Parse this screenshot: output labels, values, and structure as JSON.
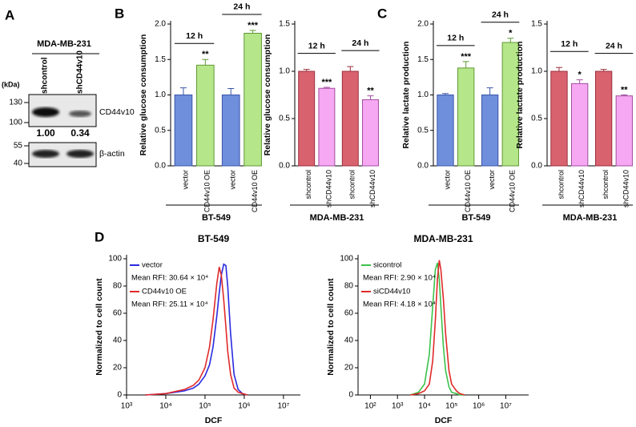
{
  "panel_a": {
    "label": "A",
    "cell_line": "MDA-MB-231",
    "unit": "(kDa)",
    "lanes": [
      "shcontrol",
      "shCD44v10"
    ],
    "markers": [
      130,
      100,
      55,
      40
    ],
    "proteins": [
      "CD44v10",
      "β-actin"
    ],
    "quantification": [
      "1.00",
      "0.34"
    ]
  },
  "chart_data": [
    {
      "type": "bar",
      "panel": "B",
      "ylabel": "Relative glucose consumption",
      "xlabel": "BT-549",
      "categories": [
        "vector",
        "CD44v10 OE",
        "vector",
        "CD44v10 OE"
      ],
      "values": [
        1.0,
        1.42,
        1.0,
        1.87
      ],
      "errors": [
        0.1,
        0.08,
        0.09,
        0.04
      ],
      "colors": [
        "#6f8fdc",
        "#b6e68a",
        "#6f8fdc",
        "#b6e68a"
      ],
      "edge_colors": [
        "#3b55a8",
        "#5f9a35",
        "#3b55a8",
        "#5f9a35"
      ],
      "ylim": [
        0,
        2
      ],
      "yticks": [
        {
          "value": 0,
          "label": "0.0"
        },
        0.5,
        {
          "value": 1,
          "label": "1.0"
        },
        1.5,
        {
          "value": 2,
          "label": "2.0"
        }
      ],
      "groups": [
        {
          "label": "12 h",
          "sig": "**"
        },
        {
          "label": "24 h",
          "sig": "***"
        }
      ]
    },
    {
      "type": "bar",
      "ylabel": "Relative glucose consumption",
      "xlabel": "MDA-MB-231",
      "categories": [
        "shcontrol",
        "shCD44v10",
        "shcontrol",
        "shCD44v10"
      ],
      "values": [
        1.0,
        0.82,
        1.0,
        0.7
      ],
      "errors": [
        0.02,
        0.01,
        0.05,
        0.04
      ],
      "colors": [
        "#d9626f",
        "#f6a8f2",
        "#d9626f",
        "#f6a8f2"
      ],
      "edge_colors": [
        "#9c2f3c",
        "#a24ea0",
        "#9c2f3c",
        "#a24ea0"
      ],
      "ylim": [
        0,
        1.5
      ],
      "yticks": [
        {
          "value": 0,
          "label": "0.0"
        },
        0.5,
        {
          "value": 1,
          "label": "1.0"
        },
        1.5
      ],
      "groups": [
        {
          "label": "12 h",
          "sig": "***"
        },
        {
          "label": "24 h",
          "sig": "**"
        }
      ]
    },
    {
      "type": "bar",
      "panel": "C",
      "ylabel": "Relative lactate production",
      "xlabel": "BT-549",
      "categories": [
        "vector",
        "CD44v10 OE",
        "vector",
        "CD44v10 OE"
      ],
      "values": [
        1.0,
        1.38,
        1.0,
        1.74
      ],
      "errors": [
        0.02,
        0.09,
        0.1,
        0.06
      ],
      "colors": [
        "#6f8fdc",
        "#b6e68a",
        "#6f8fdc",
        "#b6e68a"
      ],
      "edge_colors": [
        "#3b55a8",
        "#5f9a35",
        "#3b55a8",
        "#5f9a35"
      ],
      "ylim": [
        0,
        2
      ],
      "yticks": [
        {
          "value": 0,
          "label": "0.0"
        },
        0.5,
        {
          "value": 1,
          "label": "1.0"
        },
        1.5,
        {
          "value": 2,
          "label": "2.0"
        }
      ],
      "groups": [
        {
          "label": "12 h",
          "sig": "***"
        },
        {
          "label": "24 h",
          "sig": "*"
        }
      ]
    },
    {
      "type": "bar",
      "ylabel": "Relative lactate production",
      "xlabel": "MDA-MB-231",
      "categories": [
        "shcontrol",
        "shCD44v10",
        "shcontrol",
        "shCD44v10"
      ],
      "values": [
        1.0,
        0.87,
        1.0,
        0.74
      ],
      "errors": [
        0.04,
        0.04,
        0.02,
        0.01
      ],
      "colors": [
        "#d9626f",
        "#f6a8f2",
        "#d9626f",
        "#f6a8f2"
      ],
      "edge_colors": [
        "#9c2f3c",
        "#a24ea0",
        "#9c2f3c",
        "#a24ea0"
      ],
      "ylim": [
        0,
        1.5
      ],
      "yticks": [
        {
          "value": 0,
          "label": "0.0"
        },
        0.5,
        {
          "value": 1,
          "label": "1.0"
        },
        1.5
      ],
      "groups": [
        {
          "label": "12 h",
          "sig": "*"
        },
        {
          "label": "24 h",
          "sig": "**"
        }
      ]
    },
    {
      "type": "line",
      "panel": "D",
      "title": "BT-549",
      "xlabel": "DCF",
      "ylabel": "Normalized to cell count",
      "log_x": true,
      "legend": "upper left",
      "x": [
        3000,
        10000,
        30000,
        50000,
        70000,
        100000,
        130000,
        160000,
        200000,
        230000,
        260000,
        300000,
        340000,
        380000,
        450000,
        550000,
        700000,
        900000,
        1200000
      ],
      "series": [
        {
          "name": "vector",
          "note": "Mean RFI: 30.64 × 10⁴",
          "color": "#2a2ae0",
          "values": [
            0,
            1,
            3,
            5,
            8,
            14,
            22,
            35,
            58,
            75,
            88,
            96,
            95,
            80,
            45,
            15,
            4,
            1,
            0
          ]
        },
        {
          "name": "CD44v10 OE",
          "note": "Mean RFI: 25.11 × 10⁴",
          "color": "#e02a2a",
          "values": [
            0,
            1,
            4,
            7,
            11,
            20,
            35,
            55,
            82,
            94,
            88,
            70,
            50,
            32,
            15,
            5,
            2,
            1,
            0
          ]
        }
      ],
      "xlim": [
        1000,
        27000000
      ],
      "xticks": [
        {
          "value": 1000,
          "label": "10³"
        },
        {
          "value": 10000,
          "label": "10⁴"
        },
        {
          "value": 100000,
          "label": "10⁵"
        },
        {
          "value": 1000000,
          "label": "10⁶"
        },
        {
          "value": 10000000,
          "label": "10⁷"
        }
      ],
      "ylim": [
        0,
        100
      ],
      "yticks": [
        0,
        20,
        40,
        60,
        80,
        100
      ]
    },
    {
      "type": "line",
      "title": "MDA-MB-231",
      "xlabel": "DCF",
      "ylabel": "Normalized to cell count",
      "log_x": true,
      "legend": "upper left",
      "x": [
        3000,
        6000,
        10000,
        15000,
        20000,
        25000,
        30000,
        35000,
        40000,
        50000,
        60000,
        80000,
        100000,
        150000,
        200000,
        300000
      ],
      "series": [
        {
          "name": "sicontrol",
          "note": "Mean RFI: 2.90 × 10⁴",
          "color": "#3cc24a",
          "values": [
            0,
            2,
            8,
            30,
            65,
            92,
            97,
            85,
            65,
            35,
            18,
            6,
            2,
            1,
            0,
            0
          ]
        },
        {
          "name": "siCD44v10",
          "note": "Mean RFI: 4.18 × 10⁴",
          "color": "#e02a2a",
          "values": [
            0,
            1,
            3,
            8,
            25,
            55,
            85,
            99,
            92,
            70,
            45,
            18,
            8,
            3,
            1,
            0
          ]
        }
      ],
      "xlim": [
        35,
        70000000
      ],
      "xticks": [
        {
          "value": 100,
          "label": "10²"
        },
        {
          "value": 1000,
          "label": "10³"
        },
        {
          "value": 10000,
          "label": "10⁴"
        },
        {
          "value": 100000,
          "label": "10⁵"
        },
        {
          "value": 1000000,
          "label": "10⁶"
        },
        {
          "value": 10000000,
          "label": "10⁷"
        }
      ],
      "ylim": [
        0,
        100
      ],
      "yticks": [
        0,
        20,
        40,
        60,
        80,
        100
      ]
    }
  ]
}
